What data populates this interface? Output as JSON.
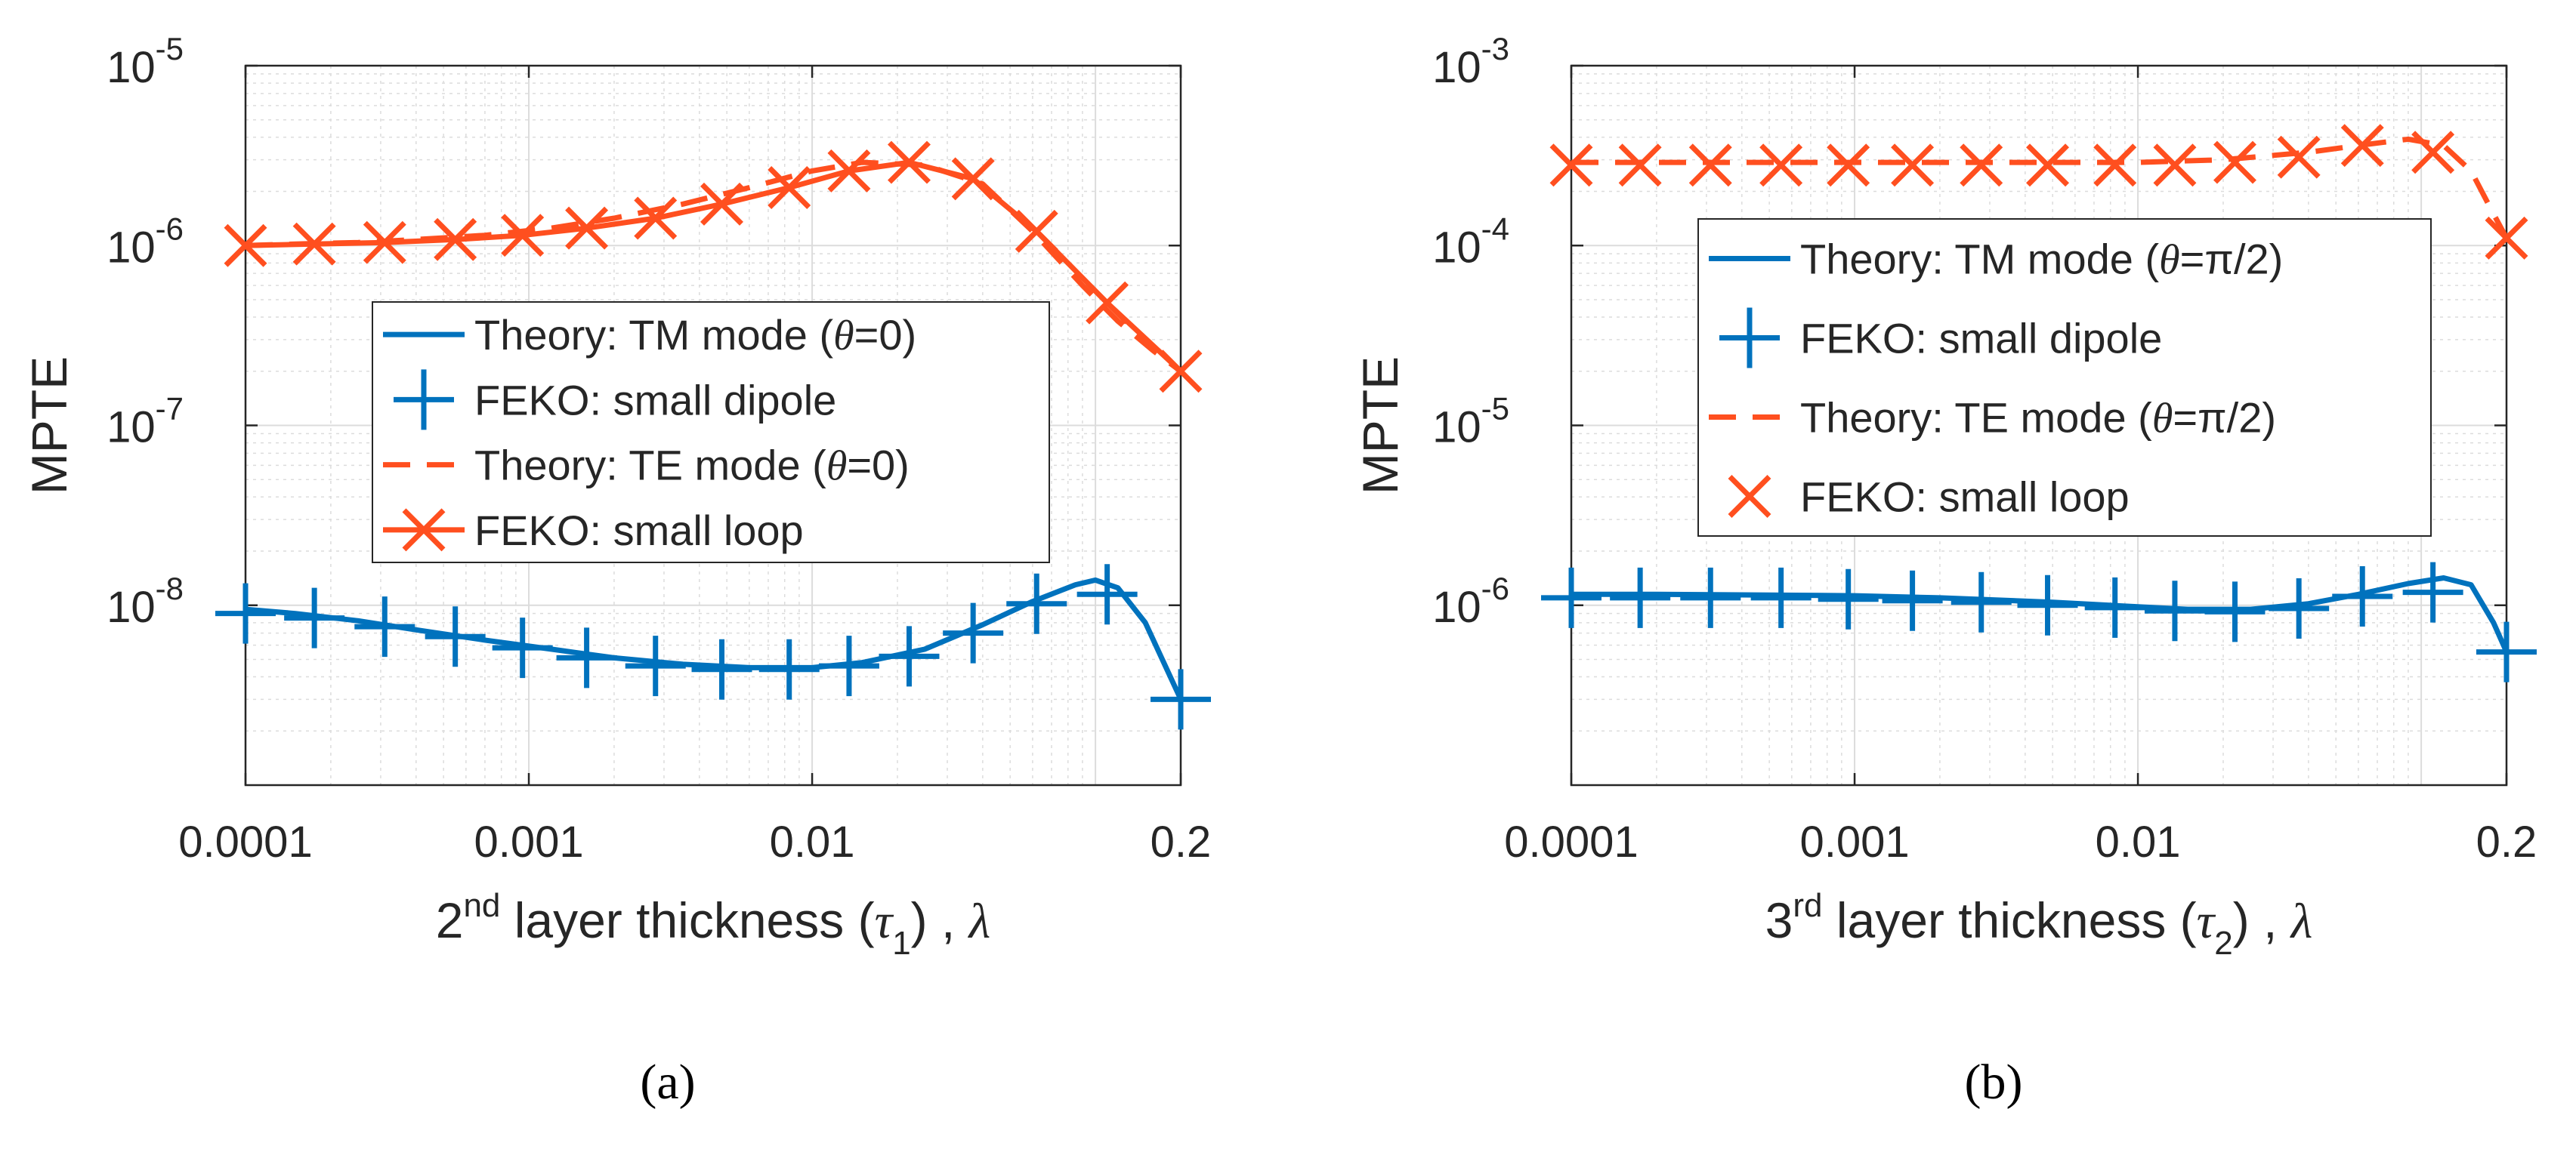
{
  "colors": {
    "tm": "#0072BD",
    "te": "#FF4F1F",
    "axis": "#262626",
    "grid": "#dcdcdc"
  },
  "chart_data": [
    {
      "panel_label": "(a)",
      "type": "line",
      "xscale": "log",
      "yscale": "log",
      "xlim": [
        0.0001,
        0.2
      ],
      "ylim": [
        1e-09,
        1e-05
      ],
      "ylabel": "MPTE",
      "xlabel": {
        "prefix": "2",
        "sup": "nd",
        "mid": " layer thickness (",
        "sym": "τ",
        "sub": "1",
        "suffix": ") , ",
        "unit": "λ"
      },
      "xticks": [
        {
          "value": 0.0001,
          "label": "0.0001"
        },
        {
          "value": 0.001,
          "label": "0.001"
        },
        {
          "value": 0.01,
          "label": "0.01"
        },
        {
          "value": 0.2,
          "label": "0.2"
        }
      ],
      "yticks": [
        {
          "value": 1e-05,
          "base": "10",
          "exp": "-5"
        },
        {
          "value": 1e-06,
          "base": "10",
          "exp": "-6"
        },
        {
          "value": 1e-07,
          "base": "10",
          "exp": "-7"
        },
        {
          "value": 1e-08,
          "base": "10",
          "exp": "-8"
        }
      ],
      "grid": true,
      "legend": {
        "placement": "center-right",
        "entries": [
          {
            "text": "Theory: TM mode (",
            "sym": "θ",
            "tail": "=0)",
            "style": "solid-tm"
          },
          {
            "text": "FEKO: small dipole",
            "sym": "",
            "tail": "",
            "style": "plus-tm"
          },
          {
            "text": "Theory: TE mode (",
            "sym": "θ",
            "tail": "=0)",
            "style": "dash-te"
          },
          {
            "text": "FEKO: small loop",
            "sym": "",
            "tail": "",
            "style": "xline-te"
          }
        ]
      },
      "series": [
        {
          "name": "Theory: TM mode",
          "style": "solid-tm",
          "x": [
            0.0001,
            0.00015,
            0.00025,
            0.0004,
            0.0007,
            0.0012,
            0.002,
            0.0035,
            0.006,
            0.01,
            0.015,
            0.025,
            0.04,
            0.06,
            0.085,
            0.1,
            0.12,
            0.15,
            0.2
          ],
          "y": [
            9.5e-09,
            9e-09,
            8.2e-09,
            7.3e-09,
            6.4e-09,
            5.7e-09,
            5.1e-09,
            4.7e-09,
            4.5e-09,
            4.5e-09,
            4.8e-09,
            5.7e-09,
            7.8e-09,
            1.05e-08,
            1.3e-08,
            1.38e-08,
            1.25e-08,
            8e-09,
            3e-09
          ]
        },
        {
          "name": "FEKO: small dipole",
          "style": "plus-tm",
          "x": [
            0.0001,
            0.000175,
            0.00031,
            0.00055,
            0.00095,
            0.0016,
            0.0028,
            0.0048,
            0.0083,
            0.0135,
            0.022,
            0.037,
            0.062,
            0.11,
            0.2
          ],
          "y": [
            9e-09,
            8.5e-09,
            7.6e-09,
            6.7e-09,
            5.8e-09,
            5.1e-09,
            4.6e-09,
            4.4e-09,
            4.4e-09,
            4.6e-09,
            5.2e-09,
            7e-09,
            1.02e-08,
            1.15e-08,
            3e-09
          ]
        },
        {
          "name": "Theory: TE mode",
          "style": "dash-te",
          "x": [
            0.0001,
            0.00015,
            0.00025,
            0.0004,
            0.0007,
            0.0012,
            0.002,
            0.0035,
            0.006,
            0.01,
            0.015,
            0.025,
            0.04,
            0.06,
            0.09,
            0.12,
            0.16,
            0.2
          ],
          "y": [
            1e-06,
            1.02e-06,
            1.04e-06,
            1.08e-06,
            1.14e-06,
            1.25e-06,
            1.42e-06,
            1.7e-06,
            2.1e-06,
            2.6e-06,
            2.9e-06,
            2.8e-06,
            2.2e-06,
            1.2e-06,
            6e-07,
            3.8e-07,
            2.6e-07,
            2e-07
          ]
        },
        {
          "name": "FEKO: small loop",
          "style": "xline-te",
          "x": [
            0.0001,
            0.000175,
            0.00031,
            0.00055,
            0.00095,
            0.0016,
            0.0028,
            0.0048,
            0.0083,
            0.0135,
            0.022,
            0.037,
            0.062,
            0.11,
            0.2
          ],
          "y": [
            1e-06,
            1.02e-06,
            1.04e-06,
            1.08e-06,
            1.14e-06,
            1.25e-06,
            1.42e-06,
            1.7e-06,
            2.1e-06,
            2.6e-06,
            2.9e-06,
            2.35e-06,
            1.2e-06,
            4.8e-07,
            2e-07
          ]
        }
      ]
    },
    {
      "panel_label": "(b)",
      "type": "line",
      "xscale": "log",
      "yscale": "log",
      "xlim": [
        0.0001,
        0.2
      ],
      "ylim": [
        1e-07,
        0.001
      ],
      "ylabel": "MPTE",
      "xlabel": {
        "prefix": "3",
        "sup": "rd",
        "mid": " layer thickness (",
        "sym": "τ",
        "sub": "2",
        "suffix": ") , ",
        "unit": "λ"
      },
      "xticks": [
        {
          "value": 0.0001,
          "label": "0.0001"
        },
        {
          "value": 0.001,
          "label": "0.001"
        },
        {
          "value": 0.01,
          "label": "0.01"
        },
        {
          "value": 0.2,
          "label": "0.2"
        }
      ],
      "yticks": [
        {
          "value": 0.001,
          "base": "10",
          "exp": "-3"
        },
        {
          "value": 0.0001,
          "base": "10",
          "exp": "-4"
        },
        {
          "value": 1e-05,
          "base": "10",
          "exp": "-5"
        },
        {
          "value": 1e-06,
          "base": "10",
          "exp": "-6"
        }
      ],
      "grid": true,
      "legend": {
        "placement": "center-right",
        "entries": [
          {
            "text": "Theory: TM mode (",
            "sym": "θ",
            "tail": "=π/2)",
            "style": "solid-tm"
          },
          {
            "text": "FEKO: small dipole",
            "sym": "",
            "tail": "",
            "style": "plus-tm"
          },
          {
            "text": "Theory: TE mode (",
            "sym": "θ",
            "tail": "=π/2)",
            "style": "dash-te"
          },
          {
            "text": "FEKO: small loop",
            "sym": "",
            "tail": "",
            "style": "x-te"
          }
        ]
      },
      "series": [
        {
          "name": "Theory: TM mode",
          "style": "solid-tm",
          "x": [
            0.0001,
            0.0002,
            0.0005,
            0.001,
            0.002,
            0.005,
            0.01,
            0.015,
            0.025,
            0.04,
            0.06,
            0.09,
            0.12,
            0.15,
            0.18,
            0.2
          ],
          "y": [
            1.15e-06,
            1.15e-06,
            1.14e-06,
            1.13e-06,
            1.1e-06,
            1.04e-06,
            9.8e-07,
            9.5e-07,
            9.5e-07,
            1.02e-06,
            1.15e-06,
            1.32e-06,
            1.42e-06,
            1.3e-06,
            8e-07,
            5.5e-07
          ]
        },
        {
          "name": "FEKO: small dipole",
          "style": "plus-tm",
          "x": [
            0.0001,
            0.000175,
            0.00031,
            0.00055,
            0.00095,
            0.0016,
            0.0028,
            0.0048,
            0.0083,
            0.0135,
            0.022,
            0.037,
            0.062,
            0.11,
            0.2
          ],
          "y": [
            1.1e-06,
            1.1e-06,
            1.1e-06,
            1.1e-06,
            1.08e-06,
            1.06e-06,
            1.04e-06,
            1e-06,
            9.7e-07,
            9.3e-07,
            9.2e-07,
            9.6e-07,
            1.12e-06,
            1.18e-06,
            5.5e-07
          ]
        },
        {
          "name": "Theory: TE mode",
          "style": "dash-te",
          "x": [
            0.0001,
            0.0002,
            0.0005,
            0.001,
            0.002,
            0.005,
            0.01,
            0.02,
            0.04,
            0.06,
            0.09,
            0.12,
            0.15,
            0.18,
            0.2
          ],
          "y": [
            0.00029,
            0.00029,
            0.00029,
            0.00029,
            0.00029,
            0.00029,
            0.00029,
            0.0003,
            0.00033,
            0.00036,
            0.00039,
            0.00036,
            0.00026,
            0.00015,
            0.00011
          ]
        },
        {
          "name": "FEKO: small loop",
          "style": "x-te",
          "x": [
            0.0001,
            0.000175,
            0.00031,
            0.00055,
            0.00095,
            0.0016,
            0.0028,
            0.0048,
            0.0083,
            0.0135,
            0.022,
            0.037,
            0.062,
            0.11,
            0.2
          ],
          "y": [
            0.00028,
            0.00028,
            0.00028,
            0.00028,
            0.00028,
            0.00028,
            0.00028,
            0.00028,
            0.00028,
            0.00028,
            0.00029,
            0.00031,
            0.00036,
            0.00033,
            0.00011
          ]
        }
      ]
    }
  ]
}
